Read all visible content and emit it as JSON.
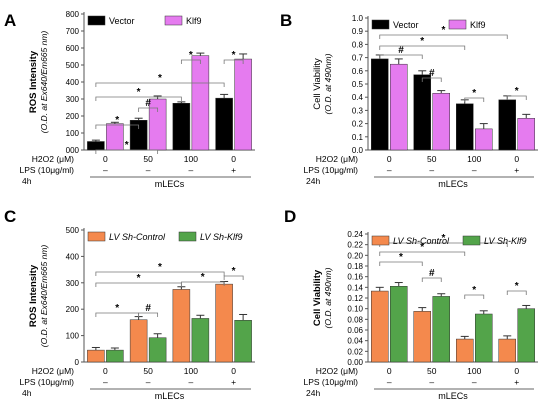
{
  "colors": {
    "black": "#000000",
    "magenta": "#e57bef",
    "orange": "#f4894d",
    "green": "#53a44a",
    "axis": "#555555"
  },
  "chart_data": [
    {
      "panel": "A",
      "type": "bar",
      "ylabel": "ROS Intensity",
      "ylabel2": "(O.D. at Ex640/Em665 nm)",
      "ylim": [
        0,
        800
      ],
      "yticks": [
        "000",
        "100",
        "200",
        "300",
        "400",
        "500",
        "600",
        "700",
        "800"
      ],
      "time_label": "4h",
      "group_label": "mLECs",
      "h2o2_label": "H2O2 (μM)",
      "lps_label": "LPS (10μg/ml)",
      "categories": [
        "0",
        "50",
        "100",
        "0"
      ],
      "lps": [
        "–",
        "–",
        "–",
        "+"
      ],
      "series": [
        {
          "name": "Vector",
          "color": "black",
          "values": [
            50,
            175,
            275,
            305
          ],
          "errors": [
            8,
            12,
            8,
            22
          ]
        },
        {
          "name": "Klf9",
          "color": "magenta",
          "values": [
            155,
            300,
            555,
            535
          ],
          "errors": [
            8,
            18,
            15,
            30
          ]
        }
      ],
      "legend_names": [
        "Vector",
        "Klf9"
      ],
      "significance": [
        "*",
        "*",
        "#",
        "*",
        "*",
        "*",
        "*"
      ]
    },
    {
      "panel": "B",
      "type": "bar",
      "ylabel": "Cell Viability",
      "ylabel2": "(O.D. at 490nm)",
      "ylim": [
        0,
        1.0
      ],
      "yticks": [
        "0.0",
        "0.1",
        "0.2",
        "0.3",
        "0.4",
        "0.5",
        "0.6",
        "0.7",
        "0.8",
        "0.9",
        "1.0"
      ],
      "time_label": "24h",
      "group_label": "mLECs",
      "h2o2_label": "H2O2 (μM)",
      "lps_label": "LPS (10μg/ml)",
      "categories": [
        "0",
        "50",
        "100",
        "0"
      ],
      "lps": [
        "–",
        "–",
        "–",
        "+"
      ],
      "series": [
        {
          "name": "Vector",
          "color": "black",
          "values": [
            0.69,
            0.57,
            0.35,
            0.38
          ],
          "errors": [
            0.03,
            0.03,
            0.03,
            0.03
          ]
        },
        {
          "name": "Klf9",
          "color": "magenta",
          "values": [
            0.65,
            0.43,
            0.16,
            0.24
          ],
          "errors": [
            0.04,
            0.02,
            0.04,
            0.03
          ]
        }
      ],
      "legend_names": [
        "Vector",
        "Klf9"
      ],
      "significance": [
        "#",
        "*",
        "*",
        "#",
        "*",
        "*"
      ]
    },
    {
      "panel": "C",
      "type": "bar",
      "ylabel": "ROS Intensity",
      "ylabel2": "(O.D. at Ex640/Em665 nm)",
      "ylim": [
        0,
        500
      ],
      "yticks": [
        "0",
        "100",
        "200",
        "300",
        "400",
        "500"
      ],
      "time_label": "4h",
      "group_label": "mLECs",
      "h2o2_label": "H2O2 (μM)",
      "lps_label": "LPS (10μg/ml)",
      "categories": [
        "0",
        "50",
        "100",
        "0"
      ],
      "lps": [
        "–",
        "–",
        "–",
        "+"
      ],
      "series": [
        {
          "name": "LV Sh-Control",
          "color": "orange",
          "values": [
            45,
            160,
            275,
            295
          ],
          "errors": [
            10,
            12,
            10,
            10
          ]
        },
        {
          "name": "LV Sh-Klf9",
          "color": "green",
          "values": [
            45,
            92,
            165,
            158
          ],
          "errors": [
            8,
            15,
            12,
            22
          ]
        }
      ],
      "legend_names": [
        "LV Sh-Control",
        "LV Sh-Klf9"
      ],
      "significance": [
        "*",
        "#",
        "*",
        "*",
        "*",
        "*"
      ]
    },
    {
      "panel": "D",
      "type": "bar",
      "ylabel": "Cell Viability",
      "ylabel2": "(O.D. at 490nm)",
      "ylim": [
        0,
        0.24
      ],
      "yticks": [
        "0.00",
        "0.02",
        "0.04",
        "0.06",
        "0.08",
        "0.10",
        "0.12",
        "0.14",
        "0.16",
        "0.18",
        "0.20",
        "0.22",
        "0.24"
      ],
      "time_label": "24h",
      "group_label": "mLECs",
      "h2o2_label": "H2O2 (μM)",
      "lps_label": "LPS (10μg/ml)",
      "categories": [
        "0",
        "50",
        "100",
        "0"
      ],
      "lps": [
        "–",
        "–",
        "–",
        "+"
      ],
      "series": [
        {
          "name": "LV Sh-Control",
          "color": "orange",
          "values": [
            0.133,
            0.095,
            0.043,
            0.043
          ],
          "errors": [
            0.007,
            0.007,
            0.005,
            0.006
          ]
        },
        {
          "name": "LV Sh-Klf9",
          "color": "green",
          "values": [
            0.142,
            0.123,
            0.09,
            0.1
          ],
          "errors": [
            0.007,
            0.005,
            0.006,
            0.006
          ]
        }
      ],
      "legend_names": [
        "LV Sh-Control",
        "LV Sh-Klf9"
      ],
      "significance": [
        "*",
        "#",
        "*",
        "*",
        "*",
        "*"
      ]
    }
  ]
}
